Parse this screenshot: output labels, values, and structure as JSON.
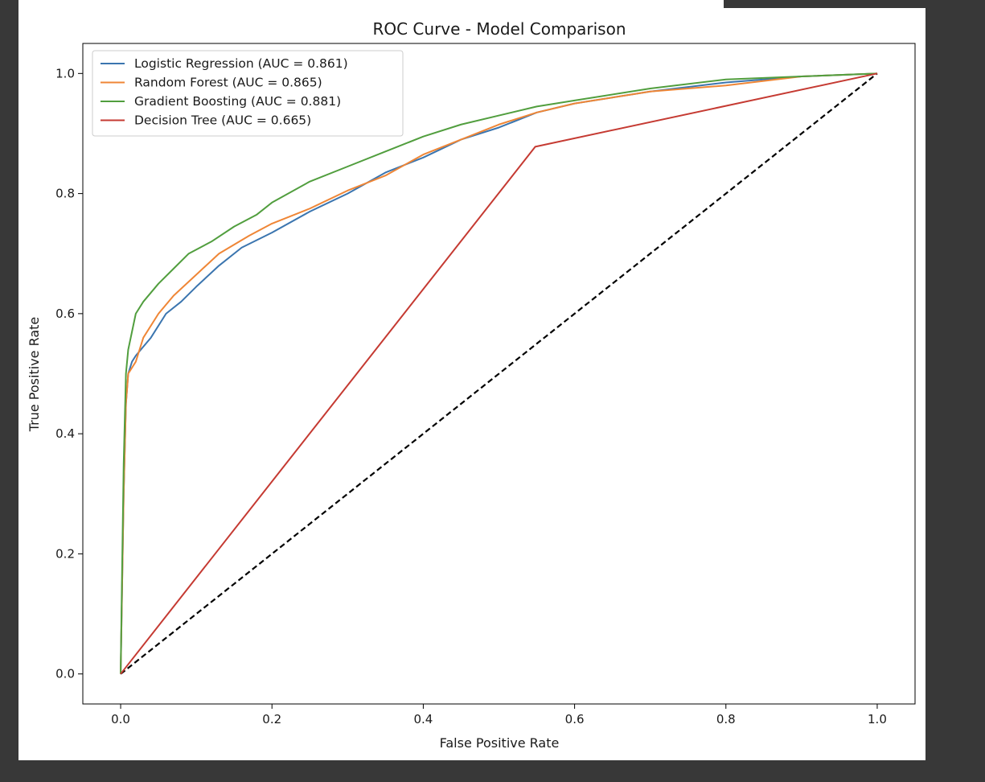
{
  "chart_data": {
    "type": "line",
    "title": "ROC Curve - Model Comparison",
    "xlabel": "False Positive Rate",
    "ylabel": "True Positive Rate",
    "xlim": [
      -0.05,
      1.05
    ],
    "ylim": [
      -0.05,
      1.05
    ],
    "xticks": [
      "0.0",
      "0.2",
      "0.4",
      "0.6",
      "0.8",
      "1.0"
    ],
    "yticks": [
      "0.0",
      "0.2",
      "0.4",
      "0.6",
      "0.8",
      "1.0"
    ],
    "grid": false,
    "legend_position": "upper-left",
    "series": [
      {
        "name": "Logistic Regression (AUC = 0.861)",
        "color": "#3b75af",
        "x": [
          0,
          0.002,
          0.004,
          0.007,
          0.01,
          0.015,
          0.02,
          0.03,
          0.04,
          0.06,
          0.08,
          0.1,
          0.13,
          0.16,
          0.2,
          0.25,
          0.3,
          0.35,
          0.4,
          0.45,
          0.5,
          0.55,
          0.6,
          0.7,
          0.8,
          0.9,
          1.0
        ],
        "y": [
          0,
          0.15,
          0.3,
          0.45,
          0.5,
          0.52,
          0.53,
          0.545,
          0.56,
          0.6,
          0.62,
          0.645,
          0.68,
          0.71,
          0.735,
          0.77,
          0.8,
          0.835,
          0.86,
          0.89,
          0.91,
          0.935,
          0.95,
          0.97,
          0.985,
          0.995,
          1.0
        ]
      },
      {
        "name": "Random Forest (AUC = 0.865)",
        "color": "#ef8636",
        "x": [
          0,
          0.002,
          0.004,
          0.007,
          0.01,
          0.02,
          0.03,
          0.05,
          0.07,
          0.1,
          0.13,
          0.17,
          0.2,
          0.25,
          0.3,
          0.35,
          0.4,
          0.45,
          0.5,
          0.55,
          0.6,
          0.7,
          0.8,
          0.9,
          1.0
        ],
        "y": [
          0,
          0.15,
          0.3,
          0.45,
          0.5,
          0.52,
          0.56,
          0.6,
          0.63,
          0.665,
          0.7,
          0.73,
          0.75,
          0.775,
          0.805,
          0.83,
          0.865,
          0.89,
          0.915,
          0.935,
          0.95,
          0.97,
          0.98,
          0.995,
          1.0
        ]
      },
      {
        "name": "Gradient Boosting (AUC = 0.881)",
        "color": "#519e3e",
        "x": [
          0,
          0.002,
          0.004,
          0.007,
          0.01,
          0.015,
          0.02,
          0.03,
          0.05,
          0.07,
          0.09,
          0.12,
          0.15,
          0.18,
          0.2,
          0.25,
          0.3,
          0.35,
          0.4,
          0.45,
          0.5,
          0.55,
          0.6,
          0.7,
          0.8,
          0.9,
          1.0
        ],
        "y": [
          0,
          0.18,
          0.35,
          0.5,
          0.54,
          0.57,
          0.6,
          0.62,
          0.65,
          0.675,
          0.7,
          0.72,
          0.745,
          0.765,
          0.785,
          0.82,
          0.845,
          0.87,
          0.895,
          0.915,
          0.93,
          0.945,
          0.955,
          0.975,
          0.99,
          0.995,
          1.0
        ]
      },
      {
        "name": "Decision Tree (AUC = 0.665)",
        "color": "#c53a32",
        "x": [
          0,
          0.548,
          1.0
        ],
        "y": [
          0,
          0.878,
          1.0
        ]
      }
    ],
    "reference_line": {
      "color": "#000000",
      "style": "dashed",
      "x": [
        0,
        1
      ],
      "y": [
        0,
        1
      ]
    }
  }
}
